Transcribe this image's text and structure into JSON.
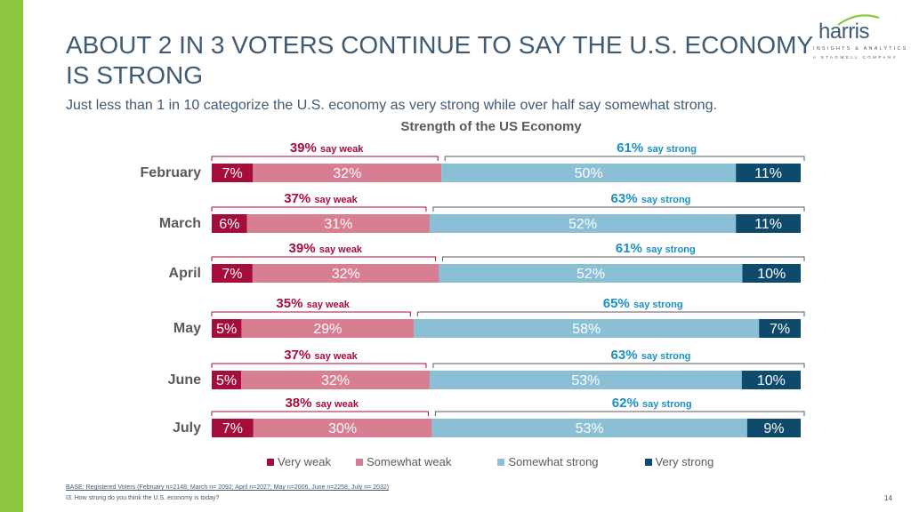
{
  "header": {
    "title": "ABOUT 2 IN 3 VOTERS CONTINUE TO SAY THE U.S. ECONOMY IS STRONG",
    "subtitle": "Just less than 1 in 10 categorize the U.S. economy as very strong while over half say somewhat strong."
  },
  "logo": {
    "word": "harris",
    "tagline": "INSIGHTS & ANALYTICS",
    "subline": "A STAGWELL COMPANY"
  },
  "colors": {
    "very_weak": "#a50d3a",
    "somewhat_weak": "#d77e92",
    "somewhat_strong": "#8bbfd6",
    "very_strong": "#0d4a6c",
    "weak_label": "#a50d3a",
    "strong_label": "#1a8fc4",
    "accent": "#8dc63f"
  },
  "chart_data": {
    "type": "bar",
    "orientation": "horizontal-stacked",
    "title": "Strength of the US Economy",
    "categories": [
      "February",
      "March",
      "April",
      "May",
      "June",
      "July"
    ],
    "series": [
      {
        "name": "Very weak",
        "values": [
          7,
          6,
          7,
          5,
          5,
          7
        ],
        "labels": [
          "7%",
          "6%",
          "7%",
          "5%",
          "5%",
          "7%"
        ]
      },
      {
        "name": "Somewhat weak",
        "values": [
          32,
          31,
          32,
          29,
          32,
          30
        ],
        "labels": [
          "32%",
          "31%",
          "32%",
          "29%",
          "32%",
          "30%"
        ]
      },
      {
        "name": "Somewhat strong",
        "values": [
          50,
          52,
          52,
          58,
          53,
          53
        ],
        "labels": [
          "50%",
          "52%",
          "52%",
          "58%",
          "53%",
          "53%"
        ]
      },
      {
        "name": "Very strong",
        "values": [
          11,
          11,
          10,
          7,
          10,
          9
        ],
        "labels": [
          "11%",
          "11%",
          "10%",
          "7%",
          "10%",
          "9%"
        ]
      }
    ],
    "weak_totals": [
      "39%",
      "37%",
      "39%",
      "35%",
      "37%",
      "38%"
    ],
    "strong_totals": [
      "61%",
      "63%",
      "61%",
      "65%",
      "63%",
      "62%"
    ],
    "weak_suffix": "say weak",
    "strong_suffix": "say strong",
    "xlim": [
      0,
      100
    ],
    "legend": [
      "Very weak",
      "Somewhat weak",
      "Somewhat strong",
      "Very strong"
    ]
  },
  "footer": {
    "base": "BASE: Registered Voters (February n=2148; March n= 2092; April n=2027; May n=2006, June n=2258; July n= 2032)",
    "question": "I3. How strong do you think the U.S. economy is today?",
    "page_number": "14"
  }
}
